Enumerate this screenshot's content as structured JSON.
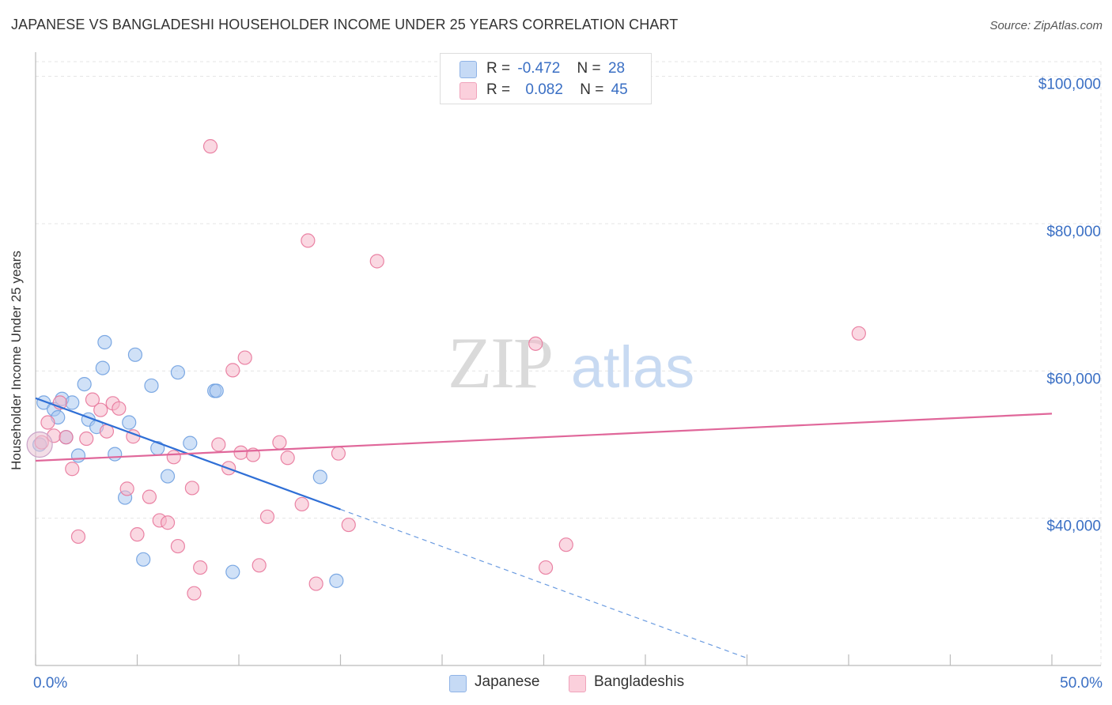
{
  "header": {
    "title": "JAPANESE VS BANGLADESHI HOUSEHOLDER INCOME UNDER 25 YEARS CORRELATION CHART",
    "source": "Source: ZipAtlas.com"
  },
  "watermark": {
    "zip": "ZIP",
    "atlas": "atlas"
  },
  "legend": {
    "rows": [
      {
        "r_label": "R =",
        "r_value": "-0.472",
        "n_label": "N =",
        "n_value": "28",
        "color": "#a9c8f0"
      },
      {
        "r_label": "R =",
        "r_value": "0.082",
        "n_label": "N =",
        "n_value": "45",
        "color": "#f5b8ca"
      }
    ]
  },
  "bottom_legend": {
    "items": [
      {
        "label": "Japanese",
        "color": "#a9c8f0"
      },
      {
        "label": "Bangladeshis",
        "color": "#f5b8ca"
      }
    ]
  },
  "chart_data": {
    "type": "scatter",
    "title": "JAPANESE VS BANGLADESHI HOUSEHOLDER INCOME UNDER 25 YEARS CORRELATION CHART",
    "xlabel": "",
    "ylabel": "Householder Income Under 25 years",
    "xlim": [
      0,
      50
    ],
    "ylim": [
      20000,
      102000
    ],
    "x_tick_labels": [
      "0.0%",
      "50.0%"
    ],
    "y_ticks": [
      40000,
      60000,
      80000,
      100000
    ],
    "y_tick_labels": [
      "$40,000",
      "$60,000",
      "$80,000",
      "$100,000"
    ],
    "grid": true,
    "legend_position": "top-center",
    "series": [
      {
        "name": "Japanese",
        "color": "#6fa0e0",
        "fill": "#a9c8f0",
        "points": [
          [
            0.4,
            55700
          ],
          [
            0.9,
            54800
          ],
          [
            1.1,
            53700
          ],
          [
            1.3,
            56200
          ],
          [
            1.5,
            51000
          ],
          [
            1.8,
            55700
          ],
          [
            2.1,
            48500
          ],
          [
            2.4,
            58200
          ],
          [
            2.6,
            53400
          ],
          [
            3.0,
            52400
          ],
          [
            3.3,
            60400
          ],
          [
            3.4,
            63900
          ],
          [
            3.9,
            48700
          ],
          [
            4.4,
            42800
          ],
          [
            4.6,
            53000
          ],
          [
            4.9,
            62200
          ],
          [
            5.3,
            34400
          ],
          [
            5.7,
            58000
          ],
          [
            6.0,
            49500
          ],
          [
            6.5,
            45700
          ],
          [
            7.0,
            59800
          ],
          [
            7.6,
            50200
          ],
          [
            8.8,
            57300
          ],
          [
            8.9,
            57300
          ],
          [
            9.7,
            32700
          ],
          [
            14.0,
            45600
          ],
          [
            14.8,
            31500
          ],
          [
            0.2,
            50000
          ]
        ],
        "trend": {
          "x0": 0,
          "y0": 56300,
          "x1": 15,
          "y1": 41200,
          "x_dash_end": 35,
          "y_dash_end": 21000
        }
      },
      {
        "name": "Bangladeshis",
        "color": "#e8779b",
        "fill": "#f5b8ca",
        "points": [
          [
            0.3,
            50300
          ],
          [
            0.6,
            53000
          ],
          [
            0.9,
            51200
          ],
          [
            1.2,
            55700
          ],
          [
            1.5,
            51000
          ],
          [
            1.8,
            46700
          ],
          [
            2.1,
            37500
          ],
          [
            2.5,
            50800
          ],
          [
            2.8,
            56100
          ],
          [
            3.2,
            54700
          ],
          [
            3.5,
            51800
          ],
          [
            3.8,
            55600
          ],
          [
            4.1,
            54900
          ],
          [
            4.5,
            44000
          ],
          [
            4.8,
            51100
          ],
          [
            5.0,
            37800
          ],
          [
            5.6,
            42900
          ],
          [
            6.1,
            39700
          ],
          [
            6.5,
            39400
          ],
          [
            6.8,
            48300
          ],
          [
            7.0,
            36200
          ],
          [
            7.7,
            44100
          ],
          [
            8.1,
            33300
          ],
          [
            8.6,
            90500
          ],
          [
            9.0,
            50000
          ],
          [
            9.5,
            46800
          ],
          [
            9.7,
            60100
          ],
          [
            10.1,
            48900
          ],
          [
            10.3,
            61800
          ],
          [
            10.7,
            48600
          ],
          [
            11.0,
            33600
          ],
          [
            11.4,
            40200
          ],
          [
            12.4,
            48200
          ],
          [
            13.1,
            41900
          ],
          [
            13.4,
            77700
          ],
          [
            13.8,
            31100
          ],
          [
            14.9,
            48800
          ],
          [
            15.4,
            39100
          ],
          [
            16.8,
            74900
          ],
          [
            24.6,
            63700
          ],
          [
            25.1,
            33300
          ],
          [
            26.1,
            36400
          ],
          [
            40.5,
            65100
          ],
          [
            7.8,
            29800
          ],
          [
            12.0,
            50300
          ]
        ],
        "trend": {
          "x0": 0,
          "y0": 47800,
          "x1": 50,
          "y1": 54200
        }
      }
    ]
  }
}
